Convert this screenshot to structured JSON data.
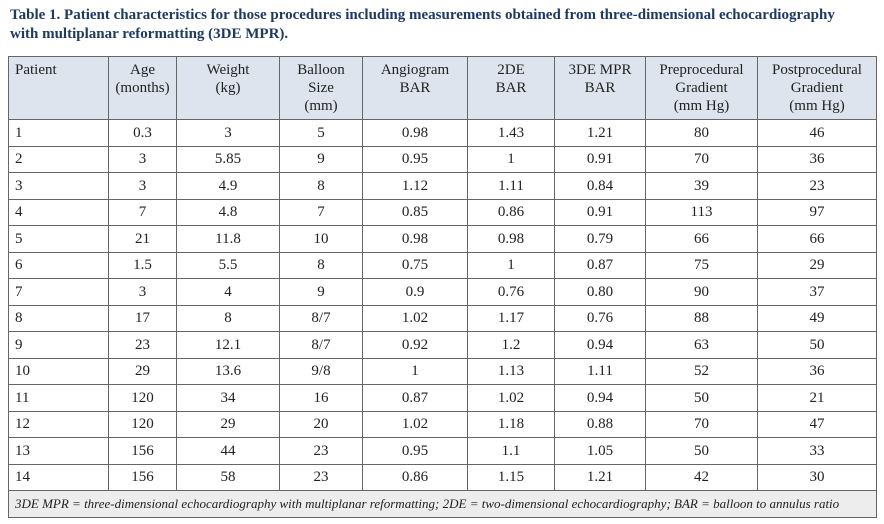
{
  "title": [
    "Table 1. Patient characteristics for those procedures including measurements obtained from three-dimensional echocardiography",
    "with multiplanar reformatting (3DE MPR)."
  ],
  "table": {
    "header": [
      [
        "Patient"
      ],
      [
        "Age",
        "(months)"
      ],
      [
        "Weight",
        "(kg)"
      ],
      [
        "Balloon",
        "Size",
        "(mm)"
      ],
      [
        "Angiogram",
        "BAR"
      ],
      [
        "2DE",
        "BAR"
      ],
      [
        "3DE MPR",
        "BAR"
      ],
      [
        "Preprocedural",
        "Gradient",
        "(mm Hg)"
      ],
      [
        "Postprocedural",
        "Gradient",
        "(mm Hg)"
      ]
    ],
    "rows": [
      [
        "1",
        "0.3",
        "3",
        "5",
        "0.98",
        "1.43",
        "1.21",
        "80",
        "46"
      ],
      [
        "2",
        "3",
        "5.85",
        "9",
        "0.95",
        "1",
        "0.91",
        "70",
        "36"
      ],
      [
        "3",
        "3",
        "4.9",
        "8",
        "1.12",
        "1.11",
        "0.84",
        "39",
        "23"
      ],
      [
        "4",
        "7",
        "4.8",
        "7",
        "0.85",
        "0.86",
        "0.91",
        "113",
        "97"
      ],
      [
        "5",
        "21",
        "11.8",
        "10",
        "0.98",
        "0.98",
        "0.79",
        "66",
        "66"
      ],
      [
        "6",
        "1.5",
        "5.5",
        "8",
        "0.75",
        "1",
        "0.87",
        "75",
        "29"
      ],
      [
        "7",
        "3",
        "4",
        "9",
        "0.9",
        "0.76",
        "0.80",
        "90",
        "37"
      ],
      [
        "8",
        "17",
        "8",
        "8/7",
        "1.02",
        "1.17",
        "0.76",
        "88",
        "49"
      ],
      [
        "9",
        "23",
        "12.1",
        "8/7",
        "0.92",
        "1.2",
        "0.94",
        "63",
        "50"
      ],
      [
        "10",
        "29",
        "13.6",
        "9/8",
        "1",
        "1.13",
        "1.11",
        "52",
        "36"
      ],
      [
        "11",
        "120",
        "34",
        "16",
        "0.87",
        "1.02",
        "0.94",
        "50",
        "21"
      ],
      [
        "12",
        "120",
        "29",
        "20",
        "1.02",
        "1.18",
        "0.88",
        "70",
        "47"
      ],
      [
        "13",
        "156",
        "44",
        "23",
        "0.95",
        "1.1",
        "1.05",
        "50",
        "33"
      ],
      [
        "14",
        "156",
        "58",
        "23",
        "0.86",
        "1.15",
        "1.21",
        "42",
        "30"
      ]
    ],
    "footnote": "3DE MPR = three-dimensional echocardiography with multiplanar reformatting; 2DE = two-dimensional echocardiography; BAR = balloon to annulus ratio"
  }
}
